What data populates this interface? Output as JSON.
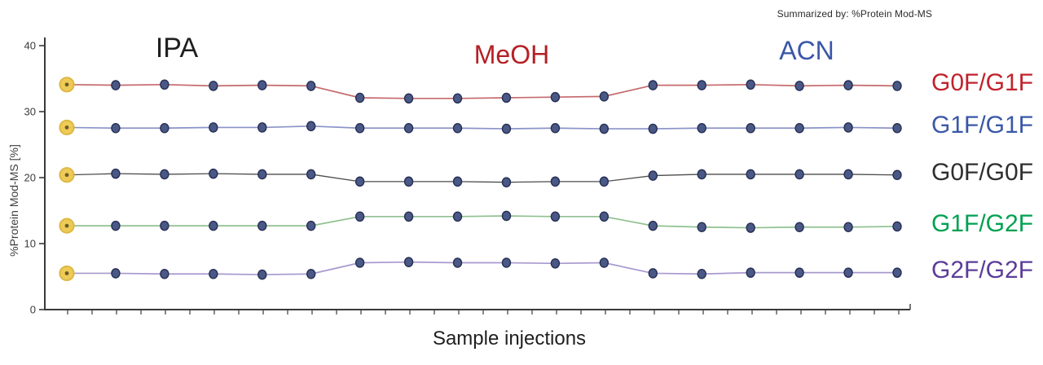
{
  "header": {
    "summarized_by": "Summarized by: %Protein Mod-MS"
  },
  "chart_data": {
    "type": "line",
    "title": "",
    "xlabel": "Sample injections",
    "ylabel": "%Protein Mod-MS [%]",
    "ylim": [
      0,
      40
    ],
    "yticks": [
      "0",
      "10",
      "20",
      "30",
      "40"
    ],
    "x_axis_tick_labels": "none",
    "grid": false,
    "legend_position": "right",
    "n_points": 18,
    "axis_color": "#3a3a3a",
    "marker": {
      "fill": "#4a5886",
      "edge": "#262f54",
      "first_point_halo_fill": "#eec94e",
      "first_point_halo_edge": "#dcb53c",
      "first_point_center_dot": "#6d5c26"
    },
    "regions": [
      {
        "label": "IPA",
        "color": "#1f1f1f",
        "points": "1-6"
      },
      {
        "label": "MeOH",
        "color": "#b42025",
        "points": "7-12"
      },
      {
        "label": "ACN",
        "color": "#3a57a8",
        "points": "13-18"
      }
    ],
    "series": [
      {
        "name": "G0F/G1F",
        "label_color": "#c0232c",
        "line_color": "#c66a6c",
        "values": [
          34.1,
          34.0,
          34.1,
          33.9,
          34.0,
          33.9,
          32.1,
          32.0,
          32.0,
          32.1,
          32.2,
          32.3,
          34.0,
          34.0,
          34.1,
          33.9,
          34.0,
          33.9
        ]
      },
      {
        "name": "G1F/G1F",
        "label_color": "#3a57a8",
        "line_color": "#8a93c8",
        "values": [
          27.6,
          27.5,
          27.5,
          27.6,
          27.6,
          27.8,
          27.5,
          27.5,
          27.5,
          27.4,
          27.5,
          27.4,
          27.4,
          27.5,
          27.5,
          27.5,
          27.6,
          27.5
        ]
      },
      {
        "name": "G0F/G0F",
        "label_color": "#2f2f2f",
        "line_color": "#4c4c4c",
        "values": [
          20.4,
          20.6,
          20.5,
          20.6,
          20.5,
          20.5,
          19.4,
          19.4,
          19.4,
          19.3,
          19.4,
          19.4,
          20.3,
          20.5,
          20.5,
          20.5,
          20.5,
          20.4
        ]
      },
      {
        "name": "G1F/G2F",
        "label_color": "#00a150",
        "line_color": "#90c190",
        "values": [
          12.7,
          12.7,
          12.7,
          12.7,
          12.7,
          12.7,
          14.1,
          14.1,
          14.1,
          14.2,
          14.1,
          14.1,
          12.7,
          12.5,
          12.4,
          12.5,
          12.5,
          12.6
        ]
      },
      {
        "name": "G2F/G2F",
        "label_color": "#5b3d99",
        "line_color": "#a79ace",
        "values": [
          5.5,
          5.5,
          5.4,
          5.4,
          5.3,
          5.4,
          7.1,
          7.2,
          7.1,
          7.1,
          7.0,
          7.1,
          5.5,
          5.4,
          5.6,
          5.6,
          5.6,
          5.6
        ]
      }
    ]
  }
}
